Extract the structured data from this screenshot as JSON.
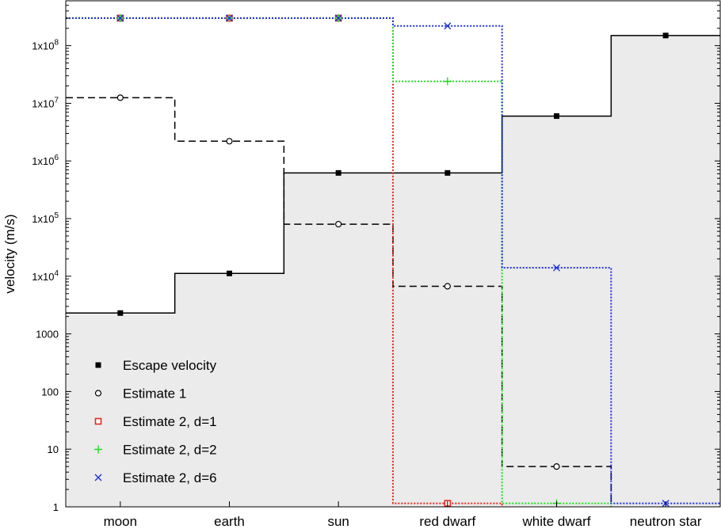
{
  "chart_data": {
    "type": "line",
    "step": true,
    "title": "",
    "xlabel": "",
    "ylabel": "velocity (m/s)",
    "yscale": "log",
    "ylim": [
      1,
      600000000
    ],
    "grid": false,
    "legend_position": "bottom-left",
    "categories": [
      "moon",
      "earth",
      "sun",
      "red dwarf",
      "white dwarf",
      "neutron star"
    ],
    "y_ticks": [
      1,
      10,
      100,
      1000,
      10000,
      100000,
      1000000,
      10000000,
      100000000
    ],
    "y_tick_labels": [
      {
        "base": "1",
        "exp": ""
      },
      {
        "base": "10",
        "exp": ""
      },
      {
        "base": "100",
        "exp": ""
      },
      {
        "base": "1000",
        "exp": ""
      },
      {
        "base": "1x10",
        "exp": "4"
      },
      {
        "base": "1x10",
        "exp": "5"
      },
      {
        "base": "1x10",
        "exp": "6"
      },
      {
        "base": "1x10",
        "exp": "7"
      },
      {
        "base": "1x10",
        "exp": "8"
      }
    ],
    "series": [
      {
        "name": "Escape velocity",
        "color": "#000000",
        "line": "solid",
        "marker": "filled-square",
        "fill": "#ebebeb",
        "values": [
          2300,
          11200,
          620000,
          620000,
          6000000,
          150000000
        ]
      },
      {
        "name": "Estimate 1",
        "color": "#000000",
        "line": "dashed",
        "marker": "open-circle",
        "values": [
          12500000,
          2200000,
          80000,
          6700,
          5,
          null
        ]
      },
      {
        "name": "Estimate 2, d=1",
        "color": "#e8281e",
        "line": "dotted",
        "marker": "open-square",
        "values": [
          300000000,
          300000000,
          300000000,
          1.15,
          null,
          null
        ]
      },
      {
        "name": "Estimate 2, d=2",
        "color": "#22dd22",
        "line": "dotted",
        "marker": "plus",
        "values": [
          300000000,
          300000000,
          300000000,
          24000000,
          1.15,
          null
        ]
      },
      {
        "name": "Estimate 2, d=6",
        "color": "#1c2ee0",
        "line": "dotted",
        "marker": "cross",
        "values": [
          300000000,
          300000000,
          300000000,
          220000000,
          14000,
          1.15
        ]
      }
    ]
  }
}
